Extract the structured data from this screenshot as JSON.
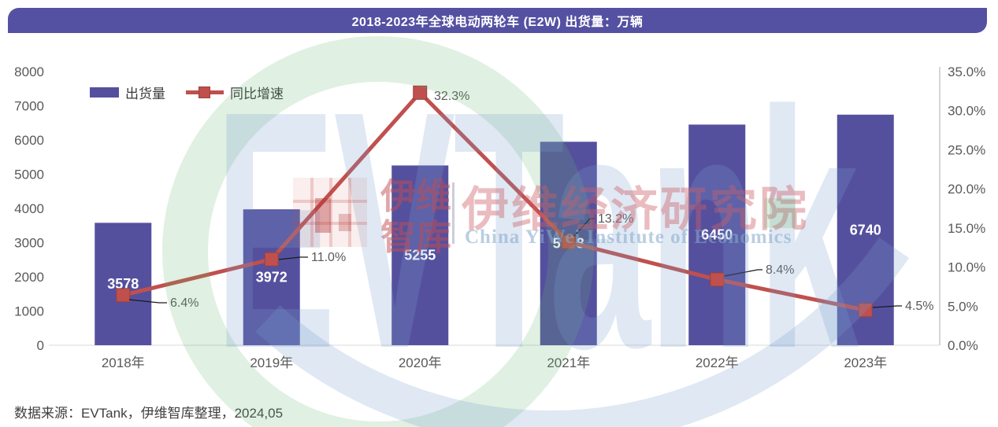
{
  "title": "2018-2023年全球电动两轮车 (E2W) 出货量：万辆",
  "source_note": "数据来源：EVTank，伊维智库整理，2024,05",
  "legend": {
    "bars_label": "出货量",
    "line_label": "同比增速"
  },
  "colors": {
    "bar": "#55509E",
    "line": "#C0504D",
    "marker_border": "#94423D",
    "banner": "#5551A2",
    "axis_text": "#595959",
    "bar_label_text": "#FFFFFF",
    "axis_line": "#C9C9C9",
    "leader_line": "#1a1a1a"
  },
  "watermark": {
    "logo_big_text": "EVTank",
    "cn_block": "伊维\n智库",
    "institute_cn": "伊维经济研究院",
    "institute_en": "China YiWei Institute of Economics"
  },
  "chart_data": {
    "type": "bar",
    "combo": "bar+line",
    "title": "2018-2023年全球电动两轮车 (E2W) 出货量：万辆",
    "categories": [
      "2018年",
      "2019年",
      "2020年",
      "2021年",
      "2022年",
      "2023年"
    ],
    "series": [
      {
        "name": "出货量",
        "type": "bar",
        "axis": "left",
        "values": [
          3578,
          3972,
          5255,
          5948,
          6450,
          6740
        ],
        "labels": [
          "3578",
          "3972",
          "5255",
          "5948",
          "6450",
          "6740"
        ]
      },
      {
        "name": "同比增速",
        "type": "line",
        "axis": "right",
        "values": [
          6.4,
          11.0,
          32.3,
          13.2,
          8.4,
          4.5
        ],
        "labels": [
          "6.4%",
          "11.0%",
          "32.3%",
          "13.2%",
          "8.4%",
          "4.5%"
        ]
      }
    ],
    "left_axis": {
      "min": 0,
      "max": 8000,
      "step": 1000,
      "tick_labels": [
        "0",
        "1000",
        "2000",
        "3000",
        "4000",
        "5000",
        "6000",
        "7000",
        "8000"
      ]
    },
    "right_axis": {
      "min": 0,
      "max": 35,
      "step": 5,
      "tick_labels": [
        "0.0%",
        "5.0%",
        "10.0%",
        "15.0%",
        "20.0%",
        "25.0%",
        "30.0%",
        "35.0%"
      ]
    },
    "grid": false,
    "legend_position": "top-left"
  }
}
